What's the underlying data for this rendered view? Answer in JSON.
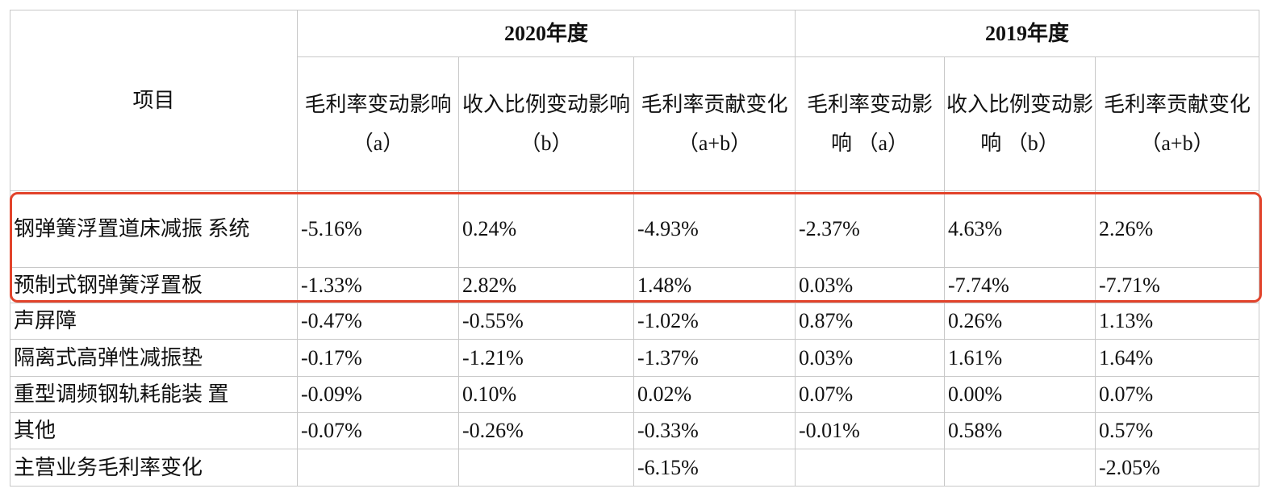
{
  "header": {
    "item": "项目",
    "groups": [
      "2020年度",
      "2019年度"
    ],
    "columns": [
      "毛利率变动影响 （a）",
      "收入比例变动影响 （b）",
      "毛利率贡献变化 （a+b）",
      "毛利率变动影响 （a）",
      "收入比例变动影响 （b）",
      "毛利率贡献变化 （a+b）"
    ]
  },
  "rows": [
    {
      "label": "钢弹簧浮置道床减振 系统",
      "values": [
        "-5.16%",
        "0.24%",
        "-4.93%",
        "-2.37%",
        "4.63%",
        "2.26%"
      ]
    },
    {
      "label": "预制式钢弹簧浮置板",
      "values": [
        "-1.33%",
        "2.82%",
        "1.48%",
        "0.03%",
        "-7.74%",
        "-7.71%"
      ]
    },
    {
      "label": "声屏障",
      "values": [
        "-0.47%",
        "-0.55%",
        "-1.02%",
        "0.87%",
        "0.26%",
        "1.13%"
      ]
    },
    {
      "label": "隔离式高弹性减振垫",
      "values": [
        "-0.17%",
        "-1.21%",
        "-1.37%",
        "0.03%",
        "1.61%",
        "1.64%"
      ]
    },
    {
      "label": "重型调频钢轨耗能装 置",
      "values": [
        "-0.09%",
        "0.10%",
        "0.02%",
        "0.07%",
        "0.00%",
        "0.07%"
      ]
    },
    {
      "label": "其他",
      "values": [
        "-0.07%",
        "-0.26%",
        "-0.33%",
        "-0.01%",
        "0.58%",
        "0.57%"
      ]
    },
    {
      "label": "主营业务毛利率变化",
      "values": [
        null,
        null,
        "-6.15%",
        null,
        null,
        "-2.05%"
      ]
    }
  ]
}
